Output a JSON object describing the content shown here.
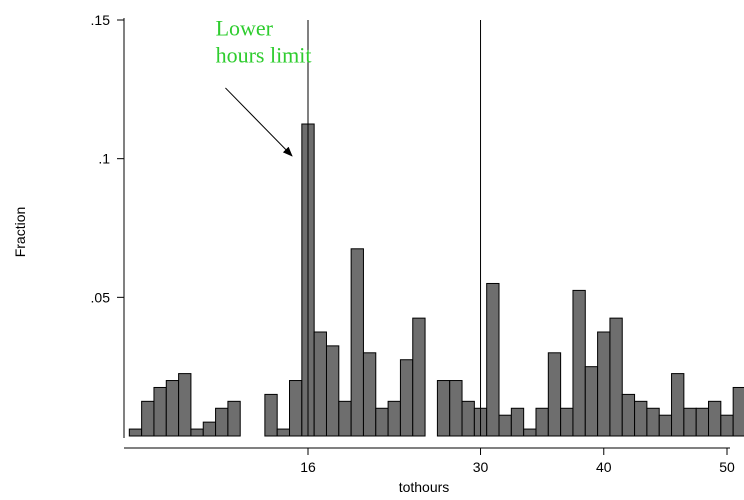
{
  "chart_data": {
    "type": "bar",
    "title": "",
    "xlabel": "tothours",
    "ylabel": "Fraction",
    "xlim": [
      0.5,
      50.5
    ],
    "ylim": [
      0,
      0.15
    ],
    "bin_width": 1,
    "bar_color": "#6e6e6e",
    "x_ticks": [
      {
        "value": 16,
        "label": "16"
      },
      {
        "value": 30,
        "label": "30"
      },
      {
        "value": 40,
        "label": "40"
      },
      {
        "value": 50,
        "label": "50"
      }
    ],
    "y_ticks": [
      {
        "value": 0.05,
        "label": ".05"
      },
      {
        "value": 0.1,
        "label": ".1"
      },
      {
        "value": 0.15,
        "label": ".15"
      }
    ],
    "bins": [
      {
        "x": 2,
        "y": 0.0025
      },
      {
        "x": 3,
        "y": 0.0125
      },
      {
        "x": 4,
        "y": 0.0175
      },
      {
        "x": 5,
        "y": 0.02
      },
      {
        "x": 6,
        "y": 0.0225
      },
      {
        "x": 7,
        "y": 0.0025
      },
      {
        "x": 8,
        "y": 0.005
      },
      {
        "x": 9,
        "y": 0.01
      },
      {
        "x": 10,
        "y": 0.0125
      },
      {
        "x": 11,
        "y": 0
      },
      {
        "x": 12,
        "y": 0
      },
      {
        "x": 13,
        "y": 0.015
      },
      {
        "x": 14,
        "y": 0.0025
      },
      {
        "x": 15,
        "y": 0.02
      },
      {
        "x": 16,
        "y": 0.1125
      },
      {
        "x": 17,
        "y": 0.0375
      },
      {
        "x": 18,
        "y": 0.0325
      },
      {
        "x": 19,
        "y": 0.0125
      },
      {
        "x": 20,
        "y": 0.0675
      },
      {
        "x": 21,
        "y": 0.03
      },
      {
        "x": 22,
        "y": 0.01
      },
      {
        "x": 23,
        "y": 0.0125
      },
      {
        "x": 24,
        "y": 0.0275
      },
      {
        "x": 25,
        "y": 0.0425
      },
      {
        "x": 26,
        "y": 0
      },
      {
        "x": 27,
        "y": 0.02
      },
      {
        "x": 28,
        "y": 0.02
      },
      {
        "x": 29,
        "y": 0.0125
      },
      {
        "x": 30,
        "y": 0.01
      },
      {
        "x": 31,
        "y": 0.055
      },
      {
        "x": 32,
        "y": 0.0075
      },
      {
        "x": 33,
        "y": 0.01
      },
      {
        "x": 34,
        "y": 0.0025
      },
      {
        "x": 35,
        "y": 0.01
      },
      {
        "x": 36,
        "y": 0.03
      },
      {
        "x": 37,
        "y": 0.01
      },
      {
        "x": 38,
        "y": 0.0525
      },
      {
        "x": 39,
        "y": 0.025
      },
      {
        "x": 40,
        "y": 0.0375
      },
      {
        "x": 41,
        "y": 0.0425
      },
      {
        "x": 42,
        "y": 0.015
      },
      {
        "x": 43,
        "y": 0.0125
      },
      {
        "x": 44,
        "y": 0.01
      },
      {
        "x": 45,
        "y": 0.0075
      },
      {
        "x": 46,
        "y": 0.0225
      },
      {
        "x": 47,
        "y": 0.01
      },
      {
        "x": 48,
        "y": 0.01
      },
      {
        "x": 49,
        "y": 0.0125
      },
      {
        "x": 50,
        "y": 0.0075
      },
      {
        "x": 51,
        "y": 0.0175
      }
    ],
    "reference_lines": [
      {
        "x": 16
      },
      {
        "x": 30
      }
    ],
    "annotations": [
      {
        "lines": [
          "Lower",
          "hours limit"
        ],
        "color": "#2ecc2e",
        "text_x": 8.5,
        "text_y": 0.1445,
        "arrow_from": [
          9.3,
          0.1255
        ],
        "arrow_to": [
          14.7,
          0.101
        ]
      }
    ]
  }
}
